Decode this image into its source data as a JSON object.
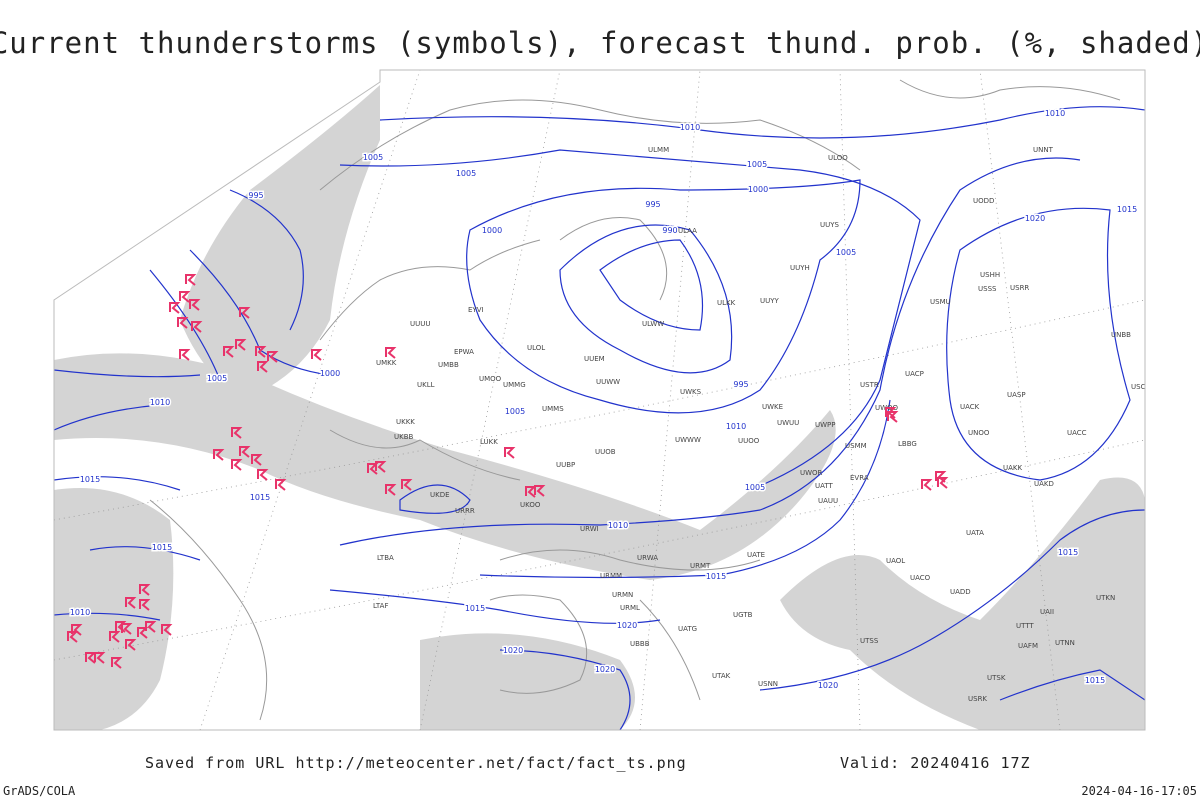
{
  "header": {
    "title": "Current thunderstorms (symbols), forecast thund. prob. (%, shaded)"
  },
  "isobar_labels": [
    "1010",
    "1005",
    "1005",
    "1005",
    "1000",
    "995",
    "1000",
    "990",
    "995",
    "995",
    "1005",
    "1000",
    "1005",
    "1010",
    "1005",
    "1005",
    "1010",
    "1015",
    "1010",
    "1015",
    "1015",
    "1010",
    "1015",
    "1020",
    "1020",
    "1020",
    "1020",
    "1015",
    "1015",
    "1010",
    "1015",
    "1020",
    "1015"
  ],
  "stations": [
    "ULMM",
    "ULOO",
    "UUYS",
    "UUYH",
    "UUYY",
    "ULAA",
    "ULKK",
    "ULWW",
    "ULOL",
    "UUEM",
    "UUWW",
    "UWKS",
    "UWKE",
    "UWUU",
    "UWPP",
    "UWWW",
    "UUOO",
    "UUOB",
    "UUBP",
    "UMMS",
    "UMOO",
    "UMMG",
    "UMBB",
    "UKLL",
    "UKKK",
    "UKBB",
    "LUKK",
    "UKDE",
    "UKOO",
    "URRR",
    "URWI",
    "URWA",
    "URMT",
    "URMM",
    "URMN",
    "URML",
    "UATG",
    "UATE",
    "UGTB",
    "UBBB",
    "UTAK",
    "USNN",
    "USRR",
    "USSS",
    "USTR",
    "UACP",
    "UACK",
    "UNOO",
    "UASP",
    "UACC",
    "UAKK",
    "UAKD",
    "UATA",
    "UAOL",
    "UACO",
    "UADD",
    "UAII",
    "UTTT",
    "UAFM",
    "UTKN",
    "UTNN",
    "UTSS",
    "UTSK",
    "USRK",
    "USHH",
    "USMU",
    "UODD",
    "UNNT",
    "UNBB",
    "USCM",
    "USMM",
    "EVRA",
    "EYVI",
    "EPWA",
    "UMKK",
    "UUUU",
    "UWOO",
    "UWOR",
    "UATT",
    "UAUU",
    "LBBG",
    "LTBA",
    "LTAF"
  ],
  "footer": {
    "saved": "Saved from URL http://meteocenter.net/fact/fact_ts.png",
    "valid": "Valid: 20240416 17Z",
    "software": "GrADS/COLA",
    "timestamp": "2024-04-16-17:05"
  }
}
